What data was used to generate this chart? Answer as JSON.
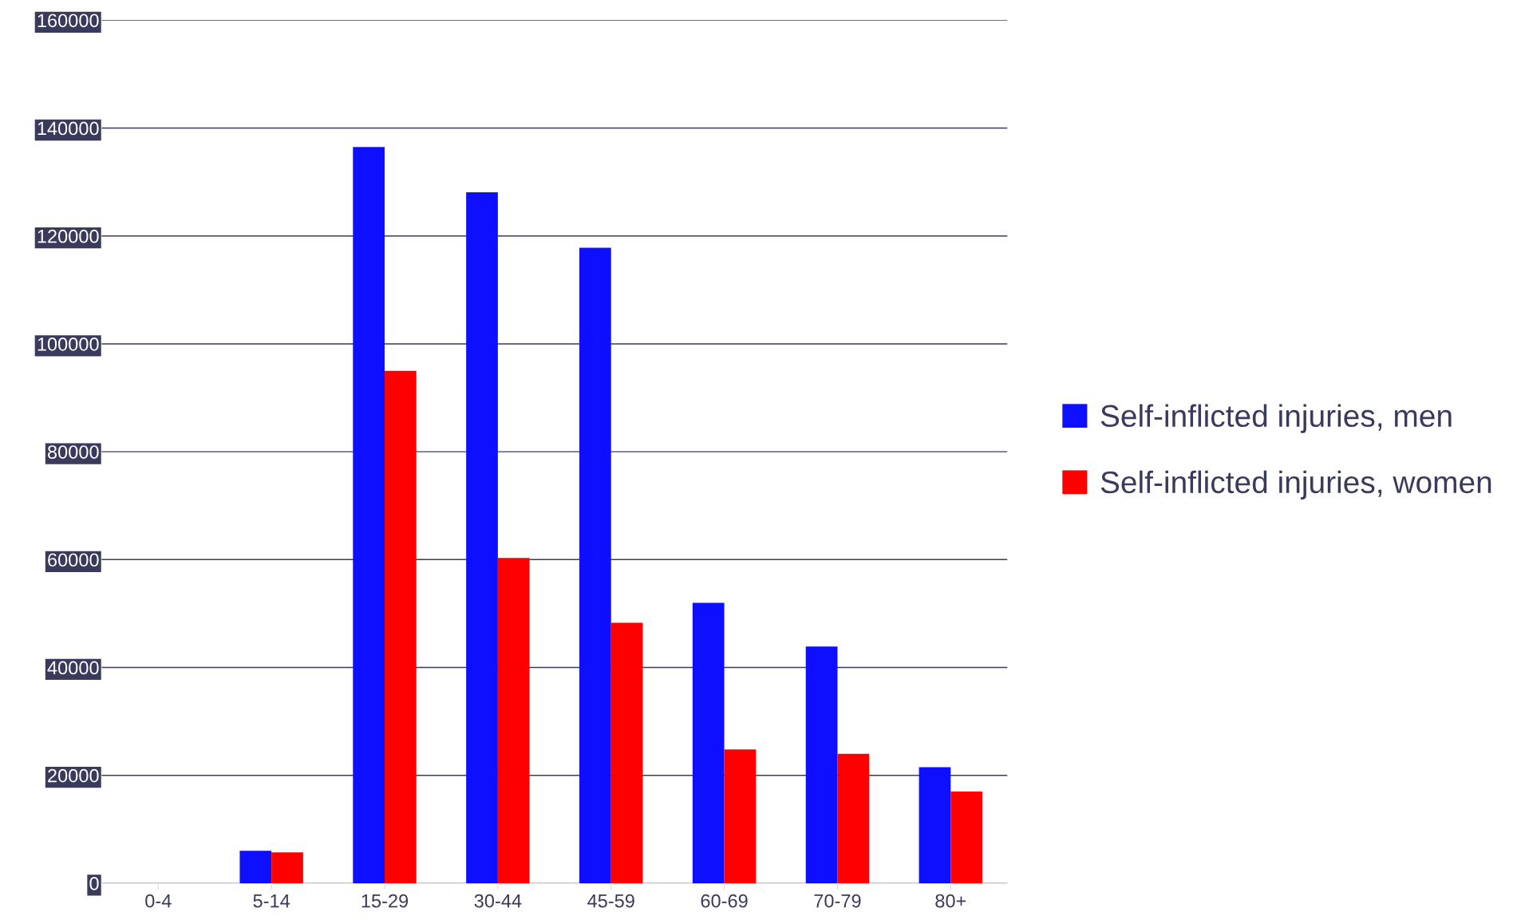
{
  "chart_data": {
    "type": "bar",
    "categories": [
      "0-4",
      "5-14",
      "15-29",
      "30-44",
      "45-59",
      "60-69",
      "70-79",
      "80+"
    ],
    "series": [
      {
        "name": "Self-inflicted injuries, men",
        "color": "#0f0fff",
        "values": [
          0,
          6000,
          136500,
          128100,
          117800,
          52000,
          43900,
          21500
        ]
      },
      {
        "name": "Self-inflicted injuries, women",
        "color": "#ff0000",
        "values": [
          0,
          5700,
          95000,
          60300,
          48300,
          24800,
          24000,
          17000
        ]
      }
    ],
    "ylim": [
      0,
      160000
    ],
    "yticks": [
      0,
      20000,
      40000,
      60000,
      80000,
      100000,
      120000,
      140000,
      160000
    ],
    "grid": "y",
    "legend": "right"
  }
}
